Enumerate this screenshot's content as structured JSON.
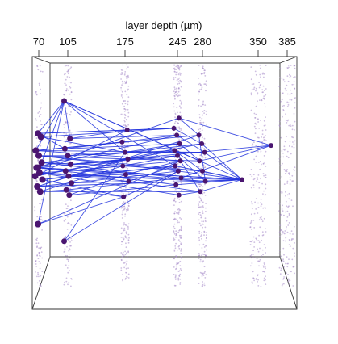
{
  "chart_data": {
    "type": "scatter",
    "title": "",
    "xlabel": "layer depth (µm)",
    "x_ticks": [
      70,
      105,
      175,
      245,
      280,
      350,
      385
    ],
    "xlim": [
      70,
      385
    ],
    "layers": [
      {
        "depth": 70,
        "density": 130
      },
      {
        "depth": 105,
        "density": 170
      },
      {
        "depth": 175,
        "density": 260
      },
      {
        "depth": 245,
        "density": 300
      },
      {
        "depth": 280,
        "density": 220
      },
      {
        "depth": 350,
        "density": 240
      },
      {
        "depth": 385,
        "density": 230
      }
    ],
    "nodes": [
      {
        "depth": 105,
        "y": 0.08
      },
      {
        "depth": 70,
        "y": 0.27
      },
      {
        "depth": 70,
        "y": 0.29
      },
      {
        "depth": 70,
        "y": 0.37
      },
      {
        "depth": 70,
        "y": 0.4
      },
      {
        "depth": 70,
        "y": 0.44
      },
      {
        "depth": 70,
        "y": 0.47
      },
      {
        "depth": 70,
        "y": 0.5
      },
      {
        "depth": 70,
        "y": 0.54
      },
      {
        "depth": 70,
        "y": 0.58
      },
      {
        "depth": 70,
        "y": 0.61
      },
      {
        "depth": 70,
        "y": 0.52
      },
      {
        "depth": 70,
        "y": 0.47
      },
      {
        "depth": 105,
        "y": 0.3
      },
      {
        "depth": 105,
        "y": 0.36
      },
      {
        "depth": 105,
        "y": 0.4
      },
      {
        "depth": 105,
        "y": 0.45
      },
      {
        "depth": 105,
        "y": 0.49
      },
      {
        "depth": 105,
        "y": 0.52
      },
      {
        "depth": 105,
        "y": 0.56
      },
      {
        "depth": 105,
        "y": 0.6
      },
      {
        "depth": 105,
        "y": 0.63
      },
      {
        "depth": 105,
        "y": 0.9
      },
      {
        "depth": 70,
        "y": 0.8
      },
      {
        "depth": 175,
        "y": 0.25
      },
      {
        "depth": 175,
        "y": 0.32
      },
      {
        "depth": 175,
        "y": 0.38
      },
      {
        "depth": 175,
        "y": 0.42
      },
      {
        "depth": 175,
        "y": 0.46
      },
      {
        "depth": 175,
        "y": 0.51
      },
      {
        "depth": 175,
        "y": 0.55
      },
      {
        "depth": 175,
        "y": 0.64
      },
      {
        "depth": 245,
        "y": 0.18
      },
      {
        "depth": 245,
        "y": 0.24
      },
      {
        "depth": 245,
        "y": 0.28
      },
      {
        "depth": 245,
        "y": 0.33
      },
      {
        "depth": 245,
        "y": 0.37
      },
      {
        "depth": 245,
        "y": 0.4
      },
      {
        "depth": 245,
        "y": 0.43
      },
      {
        "depth": 245,
        "y": 0.46
      },
      {
        "depth": 245,
        "y": 0.49
      },
      {
        "depth": 245,
        "y": 0.53
      },
      {
        "depth": 245,
        "y": 0.57
      },
      {
        "depth": 245,
        "y": 0.63
      },
      {
        "depth": 280,
        "y": 0.28
      },
      {
        "depth": 280,
        "y": 0.33
      },
      {
        "depth": 280,
        "y": 0.38
      },
      {
        "depth": 280,
        "y": 0.43
      },
      {
        "depth": 280,
        "y": 0.49
      },
      {
        "depth": 280,
        "y": 0.55
      },
      {
        "depth": 280,
        "y": 0.61
      },
      {
        "depth": 385,
        "y": 0.34
      },
      {
        "depth": 350,
        "y": 0.54
      }
    ],
    "edges": [
      [
        0,
        1
      ],
      [
        0,
        3
      ],
      [
        0,
        5
      ],
      [
        0,
        13
      ],
      [
        0,
        26
      ],
      [
        0,
        39
      ],
      [
        0,
        47
      ],
      [
        0,
        52
      ],
      [
        1,
        14
      ],
      [
        1,
        24
      ],
      [
        1,
        33
      ],
      [
        2,
        26
      ],
      [
        3,
        25
      ],
      [
        3,
        38
      ],
      [
        3,
        46
      ],
      [
        4,
        15
      ],
      [
        4,
        27
      ],
      [
        4,
        40
      ],
      [
        4,
        48
      ],
      [
        5,
        16
      ],
      [
        5,
        28
      ],
      [
        5,
        41
      ],
      [
        6,
        29
      ],
      [
        6,
        42
      ],
      [
        6,
        52
      ],
      [
        7,
        17
      ],
      [
        7,
        30
      ],
      [
        7,
        43
      ],
      [
        7,
        49
      ],
      [
        8,
        18
      ],
      [
        8,
        31
      ],
      [
        8,
        39
      ],
      [
        9,
        19
      ],
      [
        9,
        27
      ],
      [
        9,
        44
      ],
      [
        10,
        20
      ],
      [
        10,
        28
      ],
      [
        10,
        50
      ],
      [
        11,
        36
      ],
      [
        11,
        45
      ],
      [
        12,
        37
      ],
      [
        12,
        52
      ],
      [
        13,
        24
      ],
      [
        13,
        34
      ],
      [
        14,
        25
      ],
      [
        14,
        35
      ],
      [
        15,
        26
      ],
      [
        15,
        36
      ],
      [
        16,
        27
      ],
      [
        16,
        37
      ],
      [
        16,
        51
      ],
      [
        17,
        28
      ],
      [
        17,
        38
      ],
      [
        18,
        29
      ],
      [
        18,
        39
      ],
      [
        18,
        52
      ],
      [
        19,
        30
      ],
      [
        19,
        40
      ],
      [
        20,
        31
      ],
      [
        20,
        41
      ],
      [
        21,
        42
      ],
      [
        21,
        29
      ],
      [
        22,
        40
      ],
      [
        22,
        26
      ],
      [
        23,
        31
      ],
      [
        23,
        38
      ],
      [
        23,
        0
      ],
      [
        24,
        33
      ],
      [
        25,
        34
      ],
      [
        26,
        35
      ],
      [
        26,
        46
      ],
      [
        27,
        36
      ],
      [
        27,
        47
      ],
      [
        28,
        37
      ],
      [
        28,
        48
      ],
      [
        29,
        38
      ],
      [
        29,
        49
      ],
      [
        30,
        39
      ],
      [
        30,
        50
      ],
      [
        31,
        40
      ],
      [
        32,
        44
      ],
      [
        32,
        51
      ],
      [
        33,
        45
      ],
      [
        34,
        46
      ],
      [
        35,
        47
      ],
      [
        36,
        48
      ],
      [
        37,
        49
      ],
      [
        38,
        50
      ],
      [
        39,
        52
      ],
      [
        40,
        52
      ],
      [
        41,
        51
      ],
      [
        42,
        52
      ],
      [
        43,
        50
      ],
      [
        44,
        49
      ],
      [
        45,
        52
      ],
      [
        46,
        52
      ],
      [
        47,
        51
      ],
      [
        48,
        52
      ],
      [
        49,
        52
      ],
      [
        50,
        52
      ],
      [
        3,
        44
      ],
      [
        5,
        45
      ],
      [
        9,
        52
      ],
      [
        11,
        24
      ],
      [
        12,
        32
      ],
      [
        2,
        33
      ],
      [
        6,
        34
      ]
    ]
  }
}
